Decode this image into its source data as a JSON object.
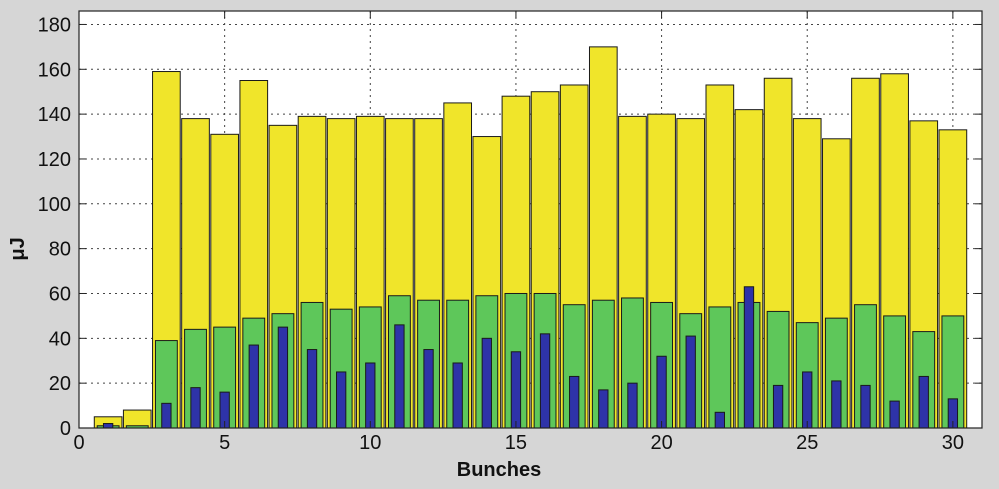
{
  "chart_data": {
    "type": "bar",
    "title": "",
    "xlabel": "Bunches",
    "ylabel": "μJ",
    "xlim": [
      0,
      31
    ],
    "ylim": [
      0,
      186
    ],
    "xticks": [
      0,
      5,
      10,
      15,
      20,
      25,
      30
    ],
    "yticks": [
      0,
      20,
      40,
      60,
      80,
      100,
      120,
      140,
      160,
      180
    ],
    "grid": true,
    "legend": "none",
    "x": [
      1,
      2,
      3,
      4,
      5,
      6,
      7,
      8,
      9,
      10,
      11,
      12,
      13,
      14,
      15,
      16,
      17,
      18,
      19,
      20,
      21,
      22,
      23,
      24,
      25,
      26,
      27,
      28,
      29,
      30
    ],
    "series": [
      {
        "color": "#f0e52a",
        "bar_width": 0.95,
        "values": [
          5,
          8,
          159,
          138,
          131,
          155,
          135,
          139,
          138,
          139,
          138,
          138,
          145,
          130,
          148,
          150,
          153,
          170,
          139,
          140,
          138,
          153,
          142,
          156,
          138,
          129,
          156,
          158,
          137,
          133
        ]
      },
      {
        "color": "#5ec75a",
        "bar_width": 0.75,
        "values": [
          1,
          1,
          39,
          44,
          45,
          49,
          51,
          56,
          53,
          54,
          59,
          57,
          57,
          59,
          60,
          60,
          55,
          57,
          58,
          56,
          51,
          54,
          56,
          52,
          47,
          49,
          55,
          50,
          43,
          50
        ]
      },
      {
        "color": "#2e33a8",
        "bar_width": 0.32,
        "values": [
          2,
          0,
          11,
          18,
          16,
          37,
          45,
          35,
          25,
          29,
          46,
          35,
          29,
          40,
          34,
          42,
          23,
          17,
          20,
          32,
          41,
          7,
          63,
          19,
          25,
          21,
          19,
          12,
          23,
          13
        ]
      }
    ]
  }
}
